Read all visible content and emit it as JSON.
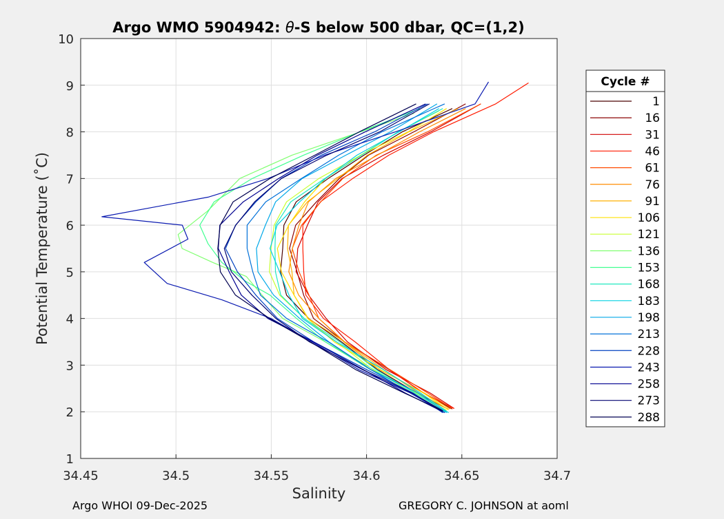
{
  "chart_data": {
    "type": "line",
    "title_prefix": "Argo WMO 5904942: ",
    "title_theta": "θ",
    "title_suffix": "-S below 500 dbar,  QC=(1,2)",
    "xlabel": "Salinity",
    "ylabel": "Potential Temperature (˚C)",
    "xlim": [
      34.45,
      34.7
    ],
    "ylim": [
      1,
      10
    ],
    "xticks": [
      34.45,
      34.5,
      34.55,
      34.6,
      34.65,
      34.7
    ],
    "xtick_labels": [
      "34.45",
      "34.5",
      "34.55",
      "34.6",
      "34.65",
      "34.7"
    ],
    "yticks": [
      1,
      2,
      3,
      4,
      5,
      6,
      7,
      8,
      9,
      10
    ],
    "ytick_labels": [
      "1",
      "2",
      "3",
      "4",
      "5",
      "6",
      "7",
      "8",
      "9",
      "10"
    ],
    "grid": true,
    "legend_title": "Cycle #",
    "legend_position": "right-outside",
    "series": [
      {
        "name": "1",
        "color": "#4a0000",
        "x": [
          34.643,
          34.628,
          34.607,
          34.585,
          34.569,
          34.56,
          34.555,
          34.554,
          34.557,
          34.565,
          34.579,
          34.597,
          34.62,
          34.645
        ],
        "y": [
          2.05,
          2.4,
          2.9,
          3.5,
          4.0,
          4.5,
          5.0,
          5.5,
          6.0,
          6.5,
          7.0,
          7.5,
          8.0,
          8.5
        ]
      },
      {
        "name": "16",
        "color": "#8b0000",
        "x": [
          34.645,
          34.63,
          34.61,
          34.589,
          34.574,
          34.566,
          34.562,
          34.561,
          34.564,
          34.572,
          34.585,
          34.603,
          34.625,
          34.652
        ],
        "y": [
          2.06,
          2.4,
          2.9,
          3.5,
          4.0,
          4.5,
          5.0,
          5.5,
          6.0,
          6.5,
          7.0,
          7.5,
          8.0,
          8.6
        ]
      },
      {
        "name": "31",
        "color": "#d00000",
        "x": [
          34.646,
          34.632,
          34.612,
          34.591,
          34.577,
          34.569,
          34.565,
          34.564,
          34.567,
          34.575,
          34.589,
          34.608,
          34.632,
          34.66
        ],
        "y": [
          2.07,
          2.4,
          2.9,
          3.5,
          4.0,
          4.5,
          5.0,
          5.5,
          6.0,
          6.5,
          7.0,
          7.5,
          8.0,
          8.6
        ]
      },
      {
        "name": "46",
        "color": "#ff1a00",
        "x": [
          34.646,
          34.632,
          34.612,
          34.592,
          34.578,
          34.57,
          34.566,
          34.565,
          34.568,
          34.577,
          34.591,
          34.611,
          34.637,
          34.668,
          34.685
        ],
        "y": [
          2.07,
          2.4,
          2.9,
          3.5,
          4.0,
          4.5,
          5.0,
          5.5,
          6.0,
          6.5,
          7.0,
          7.5,
          8.0,
          8.6,
          9.05
        ]
      },
      {
        "name": "61",
        "color": "#ff4a00",
        "x": [
          34.645,
          34.631,
          34.611,
          34.59,
          34.576,
          34.568,
          34.564,
          34.563,
          34.566,
          34.574,
          34.588,
          34.607,
          34.631,
          34.66
        ],
        "y": [
          2.07,
          2.4,
          2.9,
          3.5,
          4.0,
          4.5,
          5.0,
          5.5,
          6.0,
          6.5,
          7.0,
          7.5,
          8.0,
          8.6
        ]
      },
      {
        "name": "76",
        "color": "#ff8c00",
        "x": [
          34.644,
          34.63,
          34.609,
          34.588,
          34.573,
          34.565,
          34.561,
          34.56,
          34.563,
          34.571,
          34.585,
          34.604,
          34.627,
          34.652
        ],
        "y": [
          2.06,
          2.4,
          2.9,
          3.5,
          4.0,
          4.5,
          5.0,
          5.5,
          6.0,
          6.5,
          7.0,
          7.5,
          8.0,
          8.5
        ]
      },
      {
        "name": "91",
        "color": "#ffb000",
        "x": [
          34.643,
          34.629,
          34.608,
          34.587,
          34.571,
          34.563,
          34.559,
          34.558,
          34.561,
          34.569,
          34.583,
          34.601,
          34.624,
          34.648
        ],
        "y": [
          2.05,
          2.4,
          2.9,
          3.5,
          4.0,
          4.5,
          5.0,
          5.5,
          6.0,
          6.5,
          7.0,
          7.5,
          8.0,
          8.5
        ]
      },
      {
        "name": "106",
        "color": "#ffe000",
        "x": [
          34.643,
          34.628,
          34.607,
          34.585,
          34.569,
          34.56,
          34.556,
          34.555,
          34.558,
          34.566,
          34.58,
          34.598,
          34.62,
          34.642
        ],
        "y": [
          2.04,
          2.4,
          2.9,
          3.5,
          4.0,
          4.5,
          5.0,
          5.5,
          6.0,
          6.5,
          7.0,
          7.5,
          8.0,
          8.5
        ]
      },
      {
        "name": "121",
        "color": "#c8ff30",
        "x": [
          34.642,
          34.627,
          34.605,
          34.583,
          34.566,
          34.556,
          34.55,
          34.548,
          34.551,
          34.56,
          34.575,
          34.595,
          34.617,
          34.638
        ],
        "y": [
          2.03,
          2.4,
          2.9,
          3.5,
          4.0,
          4.5,
          5.0,
          5.5,
          6.0,
          6.5,
          7.0,
          7.5,
          8.0,
          8.45
        ]
      },
      {
        "name": "136",
        "color": "#80ff70",
        "x": [
          34.641,
          34.625,
          34.602,
          34.578,
          34.558,
          34.545,
          34.535,
          34.52,
          34.505,
          34.5,
          34.515,
          34.535,
          34.562,
          34.595,
          34.625
        ],
        "y": [
          2.0,
          2.4,
          2.9,
          3.5,
          4.0,
          4.5,
          4.9,
          5.2,
          5.5,
          5.8,
          6.3,
          7.0,
          7.5,
          8.0,
          8.4
        ]
      },
      {
        "name": "153",
        "color": "#40ff90",
        "x": [
          34.641,
          34.625,
          34.603,
          34.58,
          34.562,
          34.548,
          34.538,
          34.525,
          34.515,
          34.512,
          34.522,
          34.54,
          34.565,
          34.597,
          34.628
        ],
        "y": [
          2.0,
          2.4,
          2.9,
          3.5,
          4.0,
          4.5,
          4.8,
          5.2,
          5.6,
          6.0,
          6.5,
          7.0,
          7.5,
          8.0,
          8.5
        ]
      },
      {
        "name": "168",
        "color": "#20e8c0",
        "x": [
          34.642,
          34.627,
          34.606,
          34.584,
          34.567,
          34.557,
          34.552,
          34.55,
          34.553,
          34.562,
          34.577,
          34.596,
          34.618,
          34.64
        ],
        "y": [
          2.0,
          2.4,
          2.9,
          3.5,
          4.0,
          4.5,
          5.0,
          5.5,
          6.0,
          6.5,
          7.0,
          7.5,
          8.0,
          8.5
        ]
      },
      {
        "name": "183",
        "color": "#00d0e0",
        "x": [
          34.643,
          34.628,
          34.607,
          34.585,
          34.568,
          34.558,
          34.553,
          34.551,
          34.554,
          34.563,
          34.578,
          34.597,
          34.617,
          34.638
        ],
        "y": [
          1.98,
          2.4,
          2.9,
          3.5,
          4.0,
          4.5,
          5.0,
          5.5,
          6.0,
          6.5,
          7.0,
          7.5,
          8.0,
          8.5
        ]
      },
      {
        "name": "198",
        "color": "#00a8e8",
        "x": [
          34.642,
          34.626,
          34.604,
          34.581,
          34.563,
          34.551,
          34.545,
          34.542,
          34.545,
          34.553,
          34.568,
          34.588,
          34.611,
          34.637
        ],
        "y": [
          1.98,
          2.4,
          2.9,
          3.5,
          4.0,
          4.5,
          5.0,
          5.5,
          6.0,
          6.5,
          7.0,
          7.5,
          8.0,
          8.6
        ]
      },
      {
        "name": "213",
        "color": "#0070d8",
        "x": [
          34.641,
          34.625,
          34.602,
          34.578,
          34.559,
          34.546,
          34.539,
          34.536,
          34.539,
          34.548,
          34.564,
          34.585,
          34.61,
          34.641
        ],
        "y": [
          1.98,
          2.4,
          2.9,
          3.5,
          4.0,
          4.5,
          5.0,
          5.5,
          6.0,
          6.5,
          7.0,
          7.5,
          8.0,
          8.6
        ]
      },
      {
        "name": "228",
        "color": "#0040c0",
        "x": [
          34.64,
          34.623,
          34.599,
          34.574,
          34.554,
          34.54,
          34.532,
          34.528,
          34.531,
          34.54,
          34.556,
          34.578,
          34.603,
          34.632
        ],
        "y": [
          1.98,
          2.4,
          2.9,
          3.5,
          4.0,
          4.5,
          5.0,
          5.5,
          6.0,
          6.5,
          7.0,
          7.5,
          8.0,
          8.6
        ]
      },
      {
        "name": "243",
        "color": "#0a1ab0",
        "x": [
          34.641,
          34.623,
          34.598,
          34.571,
          34.548,
          34.525,
          34.497,
          34.482,
          34.505,
          34.505,
          34.462,
          34.515,
          34.548,
          34.58,
          34.615,
          34.655,
          34.664
        ],
        "y": [
          1.98,
          2.4,
          2.9,
          3.5,
          4.0,
          4.4,
          4.75,
          5.2,
          5.7,
          6.0,
          6.18,
          6.6,
          7.0,
          7.5,
          8.0,
          8.6,
          9.07
        ]
      },
      {
        "name": "258",
        "color": "#00008f",
        "x": [
          34.64,
          34.622,
          34.597,
          34.571,
          34.55,
          34.535,
          34.526,
          34.522,
          34.525,
          34.535,
          34.552,
          34.575,
          34.601,
          34.631
        ],
        "y": [
          2.0,
          2.4,
          2.9,
          3.5,
          4.0,
          4.5,
          5.0,
          5.5,
          6.0,
          6.5,
          7.0,
          7.5,
          8.0,
          8.6
        ]
      },
      {
        "name": "273",
        "color": "#000070",
        "x": [
          34.64,
          34.622,
          34.598,
          34.572,
          34.552,
          34.538,
          34.53,
          34.527,
          34.53,
          34.54,
          34.557,
          34.58,
          34.605,
          34.633
        ],
        "y": [
          2.02,
          2.4,
          2.9,
          3.5,
          4.0,
          4.5,
          5.0,
          5.5,
          6.0,
          6.5,
          7.0,
          7.5,
          8.0,
          8.6
        ]
      },
      {
        "name": "288",
        "color": "#000050",
        "x": [
          34.64,
          34.621,
          34.596,
          34.569,
          34.548,
          34.533,
          34.524,
          34.52,
          34.523,
          34.532,
          34.549,
          34.571,
          34.597,
          34.626
        ],
        "y": [
          2.02,
          2.4,
          2.9,
          3.5,
          4.0,
          4.5,
          5.0,
          5.5,
          6.0,
          6.5,
          7.0,
          7.5,
          8.0,
          8.6
        ]
      }
    ]
  },
  "footer": {
    "left": "Argo WHOI 09-Dec-2025",
    "right": "GREGORY C. JOHNSON at aoml"
  }
}
